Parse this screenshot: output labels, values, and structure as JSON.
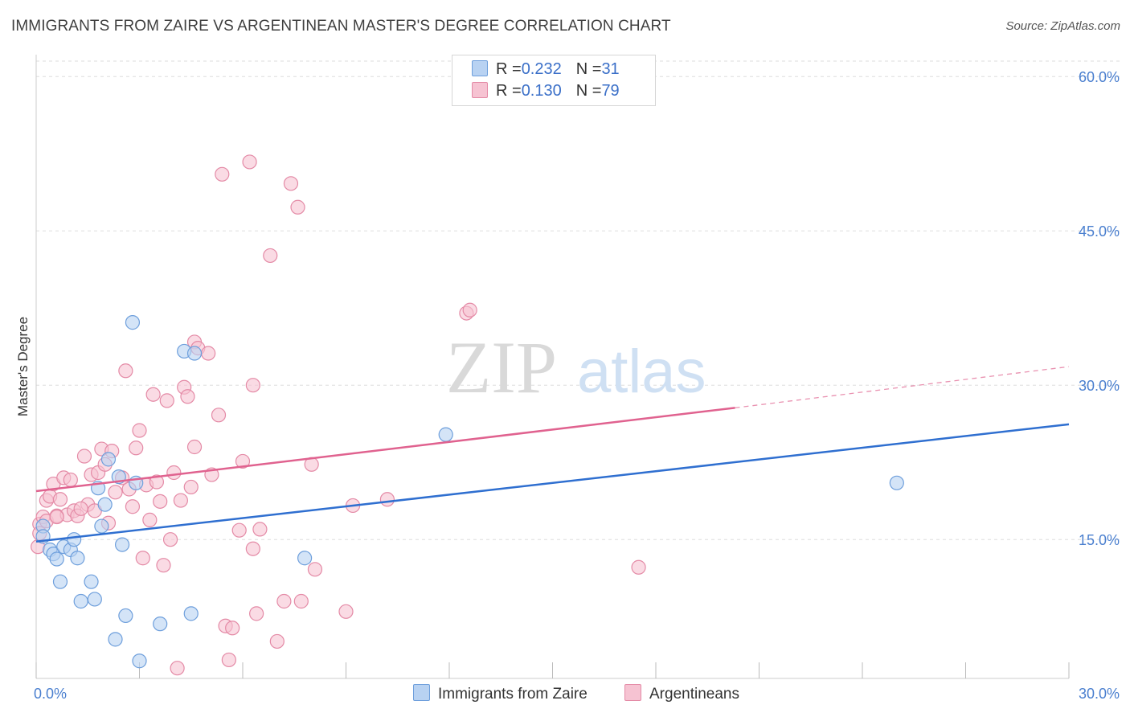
{
  "title": "IMMIGRANTS FROM ZAIRE VS ARGENTINEAN MASTER'S DEGREE CORRELATION CHART",
  "source": "Source: ZipAtlas.com",
  "watermark": {
    "zip": "ZIP",
    "atlas": "atlas"
  },
  "legend": {
    "series1": {
      "r_label": "R = ",
      "r_value": "0.232",
      "n_label": "N = ",
      "n_value": "31"
    },
    "series2": {
      "r_label": "R = ",
      "r_value": "0.130",
      "n_label": "N = ",
      "n_value": "79"
    }
  },
  "bottom_legend": {
    "series1": "Immigrants from Zaire",
    "series2": "Argentineans"
  },
  "colors": {
    "blue_fill": "#b8d2f2",
    "blue_edge": "#6e9fdc",
    "blue_line": "#2f6fd0",
    "pink_fill": "#f6c3d2",
    "pink_edge": "#e48aa6",
    "pink_line": "#e0628f",
    "grid": "#dddddd",
    "tick_text": "#4a7fcf"
  },
  "chart_data": {
    "type": "scatter",
    "title": "IMMIGRANTS FROM ZAIRE VS ARGENTINEAN MASTER'S DEGREE CORRELATION CHART",
    "xlabel": "",
    "ylabel": "Master's Degree",
    "xlim": [
      0,
      30
    ],
    "ylim": [
      1.5,
      61.5
    ],
    "yticks": [
      15,
      30,
      45,
      60
    ],
    "ytick_labels": [
      "15.0%",
      "30.0%",
      "45.0%",
      "60.0%"
    ],
    "xtick_labels": [
      "0.0%",
      "30.0%"
    ],
    "series": [
      {
        "name": "Immigrants from Zaire",
        "color": "blue",
        "points": [
          [
            0.2,
            16.3
          ],
          [
            0.2,
            15.3
          ],
          [
            0.4,
            14.0
          ],
          [
            0.5,
            13.6
          ],
          [
            0.6,
            13.1
          ],
          [
            0.7,
            10.9
          ],
          [
            0.8,
            14.3
          ],
          [
            1.0,
            14.0
          ],
          [
            1.1,
            15.0
          ],
          [
            1.2,
            13.2
          ],
          [
            1.3,
            9.0
          ],
          [
            1.6,
            10.9
          ],
          [
            1.7,
            9.2
          ],
          [
            1.8,
            20.0
          ],
          [
            1.9,
            16.3
          ],
          [
            2.0,
            18.4
          ],
          [
            2.1,
            22.8
          ],
          [
            2.3,
            5.3
          ],
          [
            2.4,
            21.1
          ],
          [
            2.5,
            14.5
          ],
          [
            2.6,
            7.6
          ],
          [
            2.8,
            36.1
          ],
          [
            2.9,
            20.5
          ],
          [
            3.0,
            3.2
          ],
          [
            3.6,
            6.8
          ],
          [
            4.3,
            33.3
          ],
          [
            4.5,
            7.8
          ],
          [
            4.6,
            33.1
          ],
          [
            7.8,
            13.2
          ],
          [
            11.9,
            25.2
          ],
          [
            25.0,
            20.5
          ]
        ],
        "trend": {
          "x0": 0,
          "y0": 14.8,
          "x1": 30,
          "y1": 26.2
        }
      },
      {
        "name": "Argentineans",
        "color": "pink",
        "points": [
          [
            0.05,
            14.3
          ],
          [
            0.1,
            16.5
          ],
          [
            0.2,
            17.2
          ],
          [
            0.3,
            16.8
          ],
          [
            0.3,
            18.8
          ],
          [
            0.4,
            19.2
          ],
          [
            0.5,
            20.4
          ],
          [
            0.6,
            17.3
          ],
          [
            0.7,
            18.9
          ],
          [
            0.8,
            21.0
          ],
          [
            0.9,
            17.4
          ],
          [
            1.0,
            20.8
          ],
          [
            1.1,
            17.8
          ],
          [
            1.2,
            17.3
          ],
          [
            1.4,
            23.1
          ],
          [
            1.5,
            18.4
          ],
          [
            1.6,
            21.3
          ],
          [
            1.7,
            17.8
          ],
          [
            1.8,
            21.5
          ],
          [
            1.9,
            23.8
          ],
          [
            2.0,
            22.3
          ],
          [
            2.1,
            16.6
          ],
          [
            2.2,
            23.6
          ],
          [
            2.3,
            19.6
          ],
          [
            2.5,
            21.0
          ],
          [
            2.6,
            31.4
          ],
          [
            2.7,
            19.9
          ],
          [
            2.8,
            18.2
          ],
          [
            2.9,
            23.9
          ],
          [
            3.0,
            25.6
          ],
          [
            3.1,
            13.2
          ],
          [
            3.2,
            20.3
          ],
          [
            3.3,
            16.9
          ],
          [
            3.4,
            29.1
          ],
          [
            3.5,
            20.6
          ],
          [
            3.6,
            18.7
          ],
          [
            3.7,
            12.5
          ],
          [
            3.8,
            28.5
          ],
          [
            3.9,
            15.0
          ],
          [
            4.0,
            21.5
          ],
          [
            4.1,
            2.5
          ],
          [
            4.2,
            18.8
          ],
          [
            4.3,
            29.8
          ],
          [
            4.4,
            28.9
          ],
          [
            4.5,
            20.1
          ],
          [
            4.6,
            24.0
          ],
          [
            4.6,
            34.2
          ],
          [
            4.7,
            33.6
          ],
          [
            5.0,
            33.1
          ],
          [
            5.1,
            21.3
          ],
          [
            5.3,
            27.1
          ],
          [
            5.4,
            50.5
          ],
          [
            5.5,
            6.6
          ],
          [
            5.6,
            3.3
          ],
          [
            5.7,
            6.4
          ],
          [
            5.9,
            15.9
          ],
          [
            6.0,
            22.6
          ],
          [
            6.2,
            51.7
          ],
          [
            6.3,
            14.1
          ],
          [
            6.3,
            30.0
          ],
          [
            6.4,
            7.8
          ],
          [
            6.5,
            16.0
          ],
          [
            6.8,
            42.6
          ],
          [
            7.0,
            5.1
          ],
          [
            7.2,
            9.0
          ],
          [
            7.4,
            49.6
          ],
          [
            7.6,
            47.3
          ],
          [
            7.7,
            9.0
          ],
          [
            8.0,
            22.3
          ],
          [
            8.1,
            12.1
          ],
          [
            9.0,
            8.0
          ],
          [
            9.2,
            18.3
          ],
          [
            10.2,
            18.9
          ],
          [
            12.5,
            37.0
          ],
          [
            12.6,
            37.3
          ],
          [
            17.5,
            12.3
          ],
          [
            0.1,
            15.6
          ],
          [
            0.6,
            17.2
          ],
          [
            1.3,
            18.0
          ]
        ],
        "trend": {
          "x0": 0,
          "y0": 19.7,
          "x1": 20.3,
          "y1": 27.8
        },
        "trend_dashed": {
          "x0": 20.3,
          "y0": 27.8,
          "x1": 30,
          "y1": 31.8
        }
      }
    ]
  }
}
